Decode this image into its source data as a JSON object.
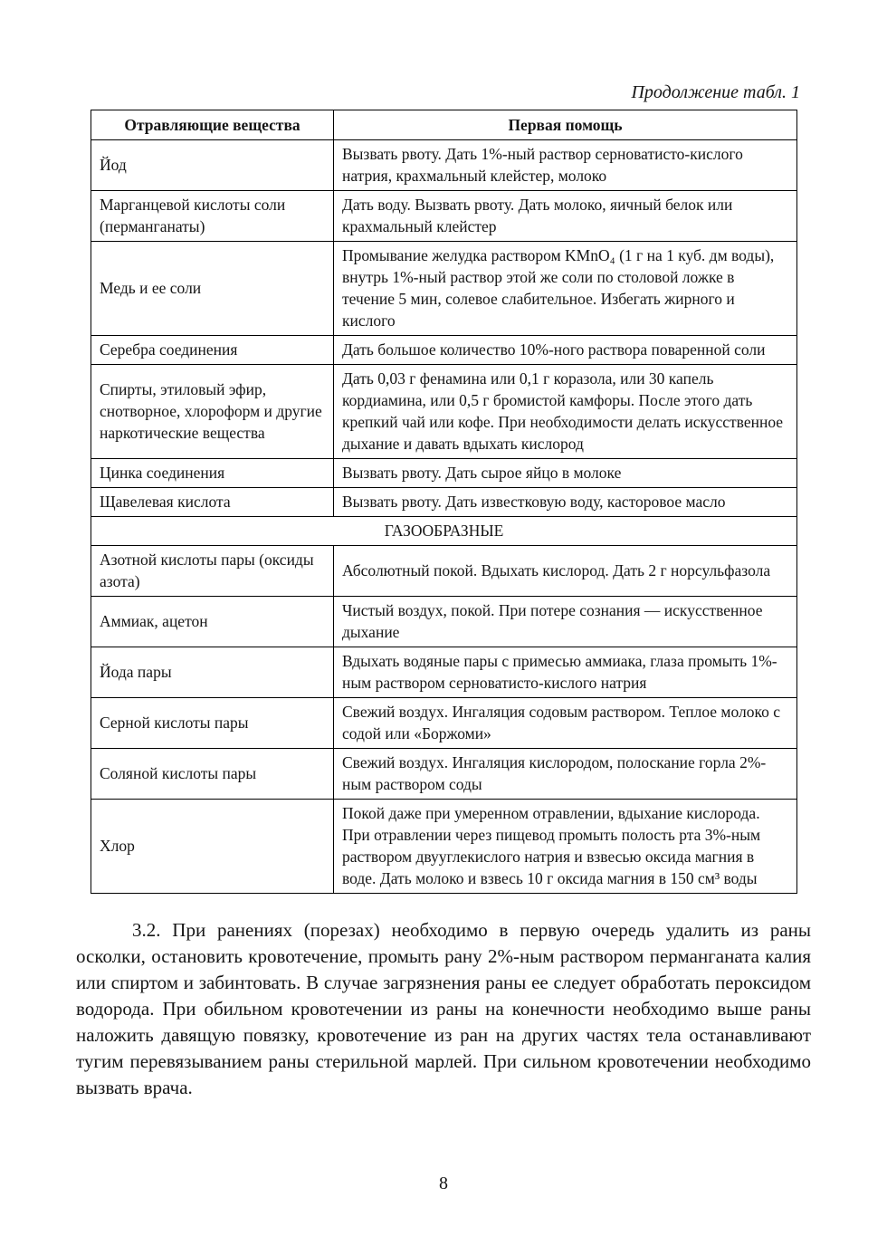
{
  "page": {
    "caption": "Продолжение табл. 1",
    "page_number": "8"
  },
  "table": {
    "headers": [
      "Отравляющие вещества",
      "Первая помощь"
    ],
    "rows": [
      {
        "substance": "Йод",
        "aid": "Вызвать рвоту. Дать 1%-ный раствор серноватисто-кислого натрия, крахмальный клейстер, молоко"
      },
      {
        "substance": "Марганцевой кислоты соли (перманганаты)",
        "aid": "Дать воду. Вызвать рвоту. Дать молоко, яичный белок или крахмальный клейстер"
      },
      {
        "substance": "Медь и ее соли",
        "aid": "Промывание желудка раствором KMnO₄ (1 г на 1 куб. дм воды), внутрь 1%-ный раствор этой же соли по столовой ложке в течение 5 мин, солевое слабительное. Избегать жирного и кислого"
      },
      {
        "substance": "Серебра соединения",
        "aid": "Дать большое количество 10%-ного раствора поваренной соли"
      },
      {
        "substance": "Спирты, этиловый эфир, снотворное, хлороформ и другие наркотические вещества",
        "aid": "Дать 0,03 г фенамина или 0,1 г коразола, или 30 капель кордиамина, или 0,5 г бромистой камфоры. После этого дать крепкий чай или кофе. При необходимости делать искусственное дыхание и давать вдыхать кислород"
      },
      {
        "substance": "Цинка соединения",
        "aid": "Вызвать рвоту. Дать сырое яйцо в молоке"
      },
      {
        "substance": "Щавелевая кислота",
        "aid": "Вызвать рвоту. Дать известковую воду, касторовое масло"
      },
      {
        "section": "ГАЗООБРАЗНЫЕ"
      },
      {
        "substance": "Азотной кислоты пары (оксиды азота)",
        "aid": "Абсолютный покой. Вдыхать кислород. Дать 2 г норсульфазола"
      },
      {
        "substance": "Аммиак, ацетон",
        "aid": "Чистый воздух, покой. При потере сознания — искусственное дыхание"
      },
      {
        "substance": "Йода пары",
        "aid": "Вдыхать водяные пары с примесью аммиака, глаза промыть 1%-ным раствором серноватисто-кислого натрия"
      },
      {
        "substance": "Серной кислоты пары",
        "aid": "Свежий воздух. Ингаляция содовым раствором. Теплое молоко с содой или «Боржоми»"
      },
      {
        "substance": "Соляной кислоты пары",
        "aid": "Свежий воздух. Ингаляция кислородом, полоскание горла 2%-ным раствором соды"
      },
      {
        "substance": "Хлор",
        "aid": "Покой даже при умеренном отравлении, вдыхание кислорода. При отравлении через пищевод промыть полость рта 3%-ным раствором двууглекислого натрия и взвесью оксида магния в воде. Дать молоко и взвесь 10 г оксида магния в 150 см³ воды"
      }
    ]
  },
  "body": {
    "paragraph": "3.2. При ранениях (порезах) необходимо в первую очередь удалить из раны осколки, остановить кровотечение, промыть рану 2%-ным раствором перманганата калия или спиртом и забинтовать. В случае загрязнения раны ее следует обработать пероксидом водорода. При обильном кровотечении из раны на конечности необходимо выше раны наложить давящую повязку, кровотечение из ран на других частях тела останавливают тугим перевязыванием раны стерильной марлей. При сильном кровотечении необходимо вызвать врача."
  }
}
